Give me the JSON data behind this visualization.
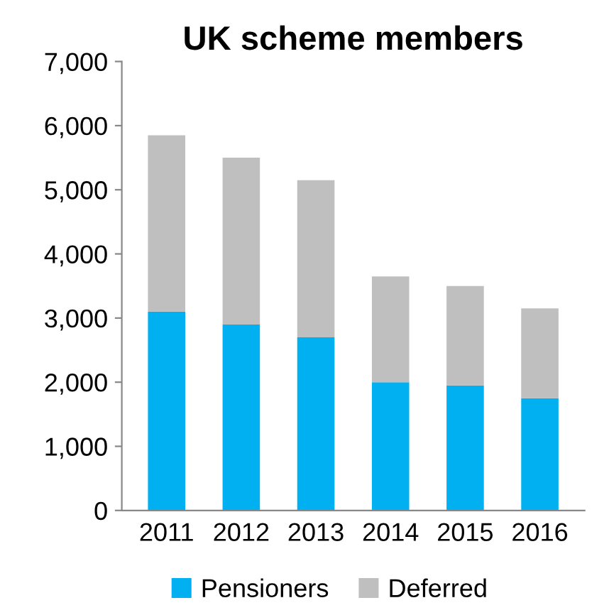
{
  "chart_data": {
    "type": "bar",
    "title": "UK scheme members",
    "categories": [
      "2011",
      "2012",
      "2013",
      "2014",
      "2015",
      "2016"
    ],
    "stacked": true,
    "series": [
      {
        "name": "Pensioners",
        "color": "#00b0f0",
        "values": [
          3100,
          2900,
          2700,
          2000,
          1950,
          1750
        ]
      },
      {
        "name": "Deferred",
        "color": "#bfbfbf",
        "values": [
          2750,
          2600,
          2450,
          1650,
          1550,
          1400
        ]
      }
    ],
    "ylim": [
      0,
      7000
    ],
    "yticks": [
      {
        "value": 0,
        "label": "0"
      },
      {
        "value": 1000,
        "label": "1,000"
      },
      {
        "value": 2000,
        "label": "2,000"
      },
      {
        "value": 3000,
        "label": "3,000"
      },
      {
        "value": 4000,
        "label": "4,000"
      },
      {
        "value": 5000,
        "label": "5,000"
      },
      {
        "value": 6000,
        "label": "6,000"
      },
      {
        "value": 7000,
        "label": "7,000"
      }
    ],
    "grid": false,
    "legend": "bottom"
  }
}
